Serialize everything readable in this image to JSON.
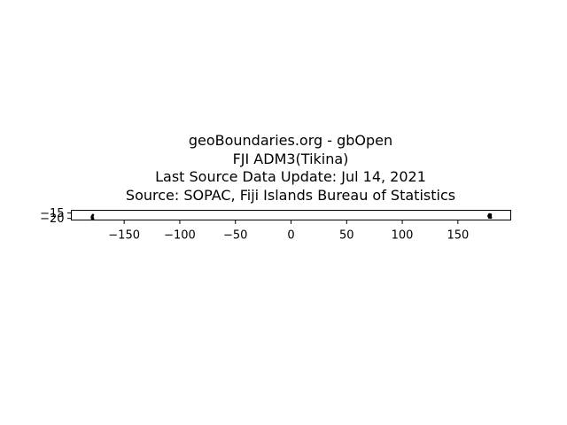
{
  "title": {
    "line1": "geoBoundaries.org - gbOpen",
    "line2": "FJI ADM3(Tikina)",
    "line3": "Last Source Data Update: Jul 14, 2021",
    "line4": "Source: SOPAC, Fiji Islands Bureau of Statistics"
  },
  "chart_data": {
    "type": "scatter",
    "title": "geoBoundaries.org - gbOpen\nFJI ADM3(Tikina)\nLast Source Data Update: Jul 14, 2021\nSource: SOPAC, Fiji Islands Bureau of Statistics",
    "xlabel": "",
    "ylabel": "",
    "xlim": [
      -197.5,
      197.5
    ],
    "ylim": [
      -21.5,
      -12.5
    ],
    "x_ticks": [
      {
        "value": -150,
        "label": "−150"
      },
      {
        "value": -100,
        "label": "−100"
      },
      {
        "value": -50,
        "label": "−50"
      },
      {
        "value": 0,
        "label": "0"
      },
      {
        "value": 50,
        "label": "50"
      },
      {
        "value": 100,
        "label": "100"
      },
      {
        "value": 150,
        "label": "150"
      }
    ],
    "y_ticks": [
      {
        "value": -15,
        "label": "−15"
      },
      {
        "value": -20,
        "label": "−20"
      }
    ],
    "grid": false,
    "legend": "none",
    "line_color": "#000000",
    "series": [
      {
        "points": [
          [
            178.2,
            -16.4
          ],
          [
            178.6,
            -16.3
          ],
          [
            179.0,
            -16.5
          ],
          [
            179.5,
            -16.6
          ],
          [
            177.6,
            -17.5
          ],
          [
            178.0,
            -17.8
          ],
          [
            178.4,
            -17.7
          ],
          [
            177.9,
            -18.1
          ],
          [
            178.5,
            -18.0
          ],
          [
            178.9,
            -17.3
          ],
          [
            179.3,
            -17.9
          ],
          [
            178.2,
            -18.5
          ],
          [
            178.1,
            -19.1
          ],
          [
            178.8,
            -19.0
          ],
          [
            179.6,
            -19.3
          ],
          [
            -178.1,
            -16.9
          ],
          [
            -178.6,
            -17.8
          ],
          [
            -178.9,
            -18.6
          ],
          [
            -179.0,
            -19.2
          ],
          [
            -178.3,
            -19.5
          ],
          [
            -178.0,
            -20.6
          ],
          [
            -178.7,
            -20.9
          ]
        ]
      }
    ]
  }
}
